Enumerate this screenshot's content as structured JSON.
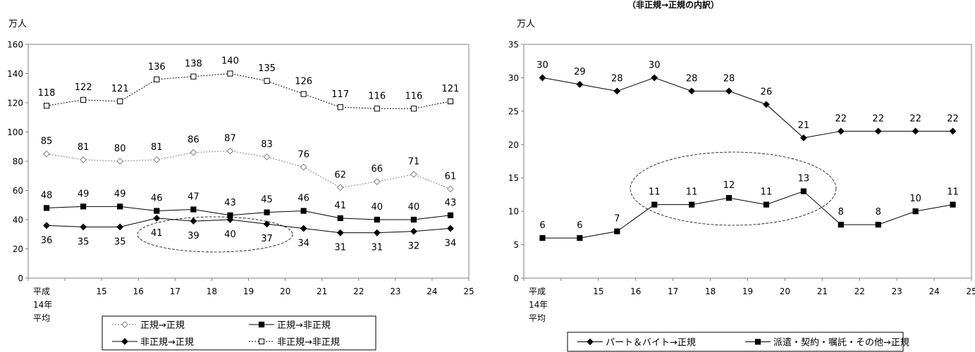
{
  "chart_data": [
    {
      "type": "line",
      "unit_label": "万人",
      "ylim": [
        0,
        160
      ],
      "yticks": [
        0,
        20,
        40,
        60,
        80,
        100,
        120,
        140,
        160
      ],
      "categories": [
        "平成\n14年\n平均",
        "15",
        "16",
        "17",
        "18",
        "19",
        "20",
        "21",
        "22",
        "23",
        "24",
        "25"
      ],
      "series": [
        {
          "name": "正規→正規",
          "values": [
            85,
            81,
            80,
            81,
            86,
            87,
            83,
            76,
            62,
            66,
            71,
            61
          ],
          "marker": "diamond-open",
          "line": "dotted",
          "color": "#808080",
          "label_pos": "above"
        },
        {
          "name": "正規→非正規",
          "values": [
            48,
            49,
            49,
            46,
            47,
            43,
            45,
            46,
            41,
            40,
            40,
            43
          ],
          "marker": "square-filled",
          "line": "solid",
          "color": "#000000",
          "label_pos": "above"
        },
        {
          "name": "非正規→正規",
          "values": [
            36,
            35,
            35,
            41,
            39,
            40,
            37,
            34,
            31,
            31,
            32,
            34
          ],
          "marker": "diamond-filled",
          "line": "solid",
          "color": "#000000",
          "label_pos": "below"
        },
        {
          "name": "非正規→非正規",
          "values": [
            118,
            122,
            121,
            136,
            138,
            140,
            135,
            126,
            117,
            116,
            116,
            121
          ],
          "marker": "square-open",
          "line": "dotted",
          "color": "#000000",
          "label_pos": "above"
        }
      ],
      "legend": {
        "placement": "bottom",
        "columns": 2
      }
    },
    {
      "type": "line",
      "title": "（非正規→正規の内訳）",
      "unit_label": "万人",
      "ylim": [
        0,
        35
      ],
      "yticks": [
        0,
        5,
        10,
        15,
        20,
        25,
        30,
        35
      ],
      "categories": [
        "平成\n14年\n平均",
        "15",
        "16",
        "17",
        "18",
        "19",
        "20",
        "21",
        "22",
        "23",
        "24",
        "25"
      ],
      "series": [
        {
          "name": "パート＆バイト→正規",
          "values": [
            30,
            29,
            28,
            30,
            28,
            28,
            26,
            21,
            22,
            22,
            22,
            22
          ],
          "marker": "diamond-filled",
          "line": "solid",
          "color": "#000000",
          "label_pos": "above"
        },
        {
          "name": "派遣・契約・嘱託・その他→正規",
          "values": [
            6,
            6,
            7,
            11,
            11,
            12,
            11,
            13,
            8,
            8,
            10,
            11
          ],
          "marker": "square-filled",
          "line": "solid",
          "color": "#000000",
          "label_pos": "above"
        }
      ],
      "legend": {
        "placement": "bottom",
        "columns": 2
      }
    }
  ]
}
